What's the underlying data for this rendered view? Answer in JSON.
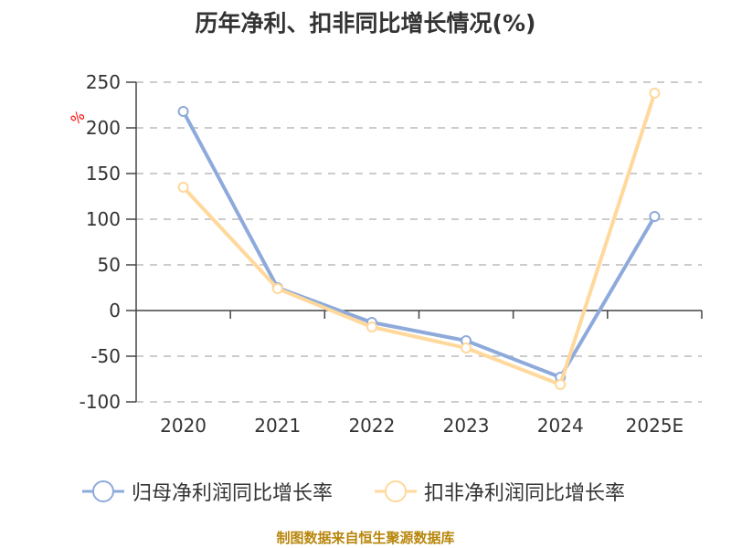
{
  "chart_data": {
    "type": "line",
    "title": "历年净利、扣非同比增长情况(%)",
    "xlabel": "",
    "ylabel": "%",
    "categories": [
      "2020",
      "2021",
      "2022",
      "2023",
      "2024",
      "2025E"
    ],
    "series": [
      {
        "name": "归母净利润同比增长率",
        "color": "#8eaadb",
        "values": [
          218,
          25,
          -13,
          -33,
          -73,
          103
        ]
      },
      {
        "name": "扣非净利润同比增长率",
        "color": "#ffd89b",
        "values": [
          135,
          24,
          -18,
          -41,
          -81,
          238
        ]
      }
    ],
    "ylim": [
      -100,
      250
    ],
    "yticks": [
      250,
      200,
      150,
      100,
      50,
      0,
      -50,
      -100
    ],
    "grid": true,
    "grid_style": "dashed",
    "legend_position": "bottom"
  },
  "header": {
    "title": "历年净利、扣非同比增长情况(%)"
  },
  "axis": {
    "unit_label": "%"
  },
  "legend": {
    "items": [
      {
        "label": "归母净利润同比增长率",
        "color": "#8eaadb"
      },
      {
        "label": "扣非净利润同比增长率",
        "color": "#ffd89b"
      }
    ]
  },
  "footer": {
    "source": "制图数据来自恒生聚源数据库"
  }
}
